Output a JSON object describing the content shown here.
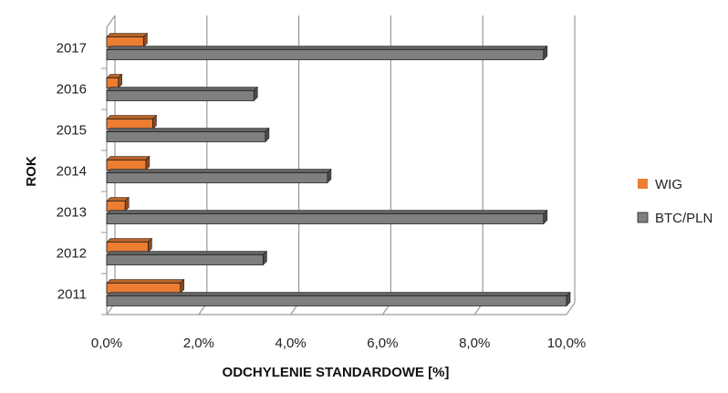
{
  "chart_data": {
    "type": "bar",
    "orientation": "horizontal",
    "categories": [
      "2011",
      "2012",
      "2013",
      "2014",
      "2015",
      "2016",
      "2017"
    ],
    "series": [
      {
        "name": "WIG",
        "color": "#ED7D31",
        "values": [
          1.6,
          0.9,
          0.4,
          0.85,
          1.0,
          0.25,
          0.8
        ]
      },
      {
        "name": "BTC/PLN",
        "color": "#7F7F7F",
        "values": [
          10.0,
          3.4,
          9.5,
          4.8,
          3.45,
          3.2,
          9.5
        ]
      }
    ],
    "xlim": [
      0,
      10
    ],
    "xticks": [
      "0,0%",
      "2,0%",
      "4,0%",
      "6,0%",
      "8,0%",
      "10,0%"
    ],
    "xlabel": "ODCHYLENIE STANDARDOWE [%]",
    "ylabel": "ROK",
    "grid": true,
    "legend_position": "right",
    "style": "3d-bar"
  }
}
